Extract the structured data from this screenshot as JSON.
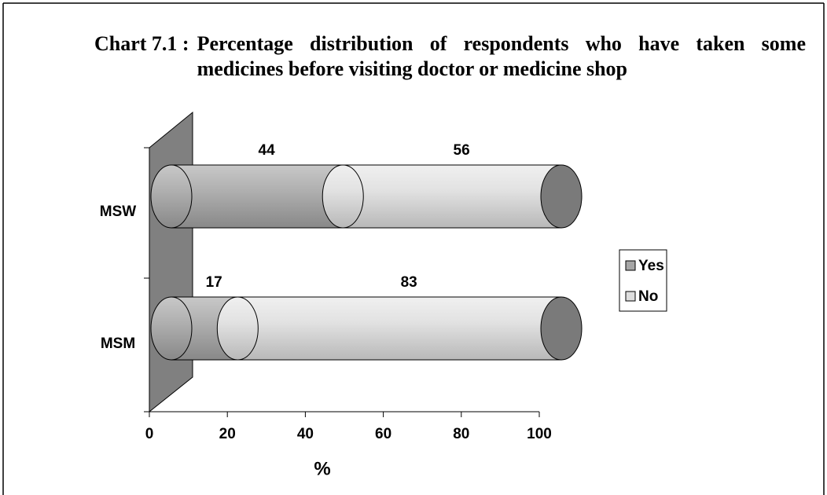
{
  "chart_data": {
    "type": "bar",
    "orientation": "horizontal",
    "stacked": true,
    "title_label": "Chart 7.1 :",
    "title": "Percentage distribution of respondents who have taken some medicines before visiting doctor or medicine shop",
    "categories": [
      "MSW",
      "MSM"
    ],
    "series": [
      {
        "name": "Yes",
        "color": "#a6a6a6",
        "values": [
          44,
          17
        ]
      },
      {
        "name": "No",
        "color": "#dedede",
        "values": [
          56,
          83
        ]
      }
    ],
    "xlim": [
      0,
      100
    ],
    "xticks": [
      0,
      20,
      40,
      60,
      80,
      100
    ],
    "xlabel": "%",
    "legend": "right"
  }
}
